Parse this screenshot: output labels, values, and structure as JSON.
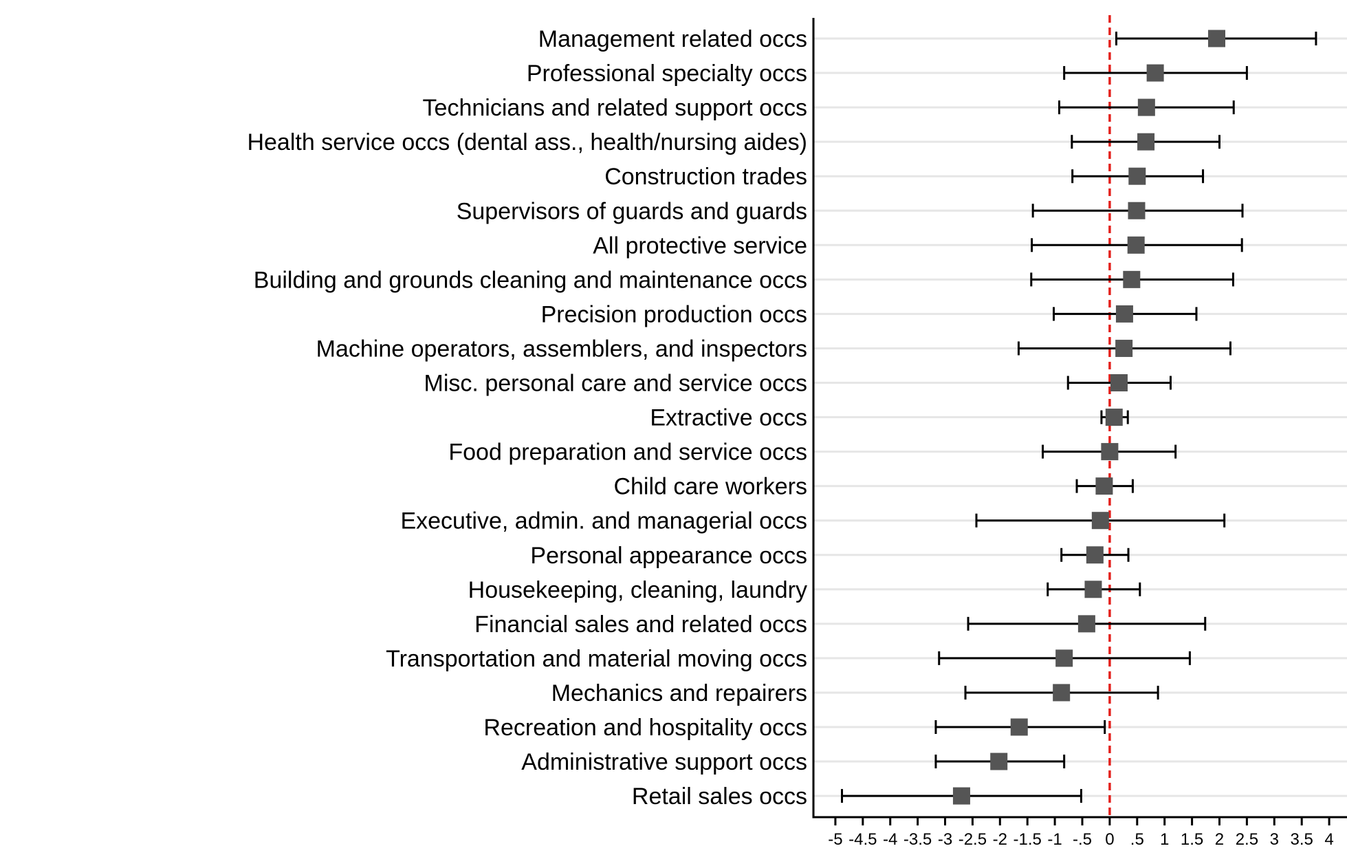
{
  "chart_data": {
    "type": "scatter",
    "subtype": "coefficient-plot-with-confidence-intervals",
    "orientation": "horizontal",
    "title": "",
    "xlabel": "",
    "ylabel": "",
    "xlim": [
      -5.4,
      4.4
    ],
    "xticks": [
      -5,
      -4.5,
      -4,
      -3.5,
      -3,
      -2.5,
      -2,
      -1.5,
      -1,
      -0.5,
      0,
      0.5,
      1,
      1.5,
      2,
      2.5,
      3,
      3.5,
      4
    ],
    "xtick_labels": [
      "-5",
      "-4.5",
      "-4",
      "-3.5",
      "-3",
      "-2.5",
      "-2",
      "-1.5",
      "-1",
      "-.5",
      "0",
      ".5",
      "1",
      "1.5",
      "2",
      "2.5",
      "3",
      "3.5",
      "4"
    ],
    "reference_line": {
      "x": 0,
      "color": "#e3201b",
      "style": "dashed"
    },
    "grid": "horizontal",
    "legend": "none",
    "colors": {
      "marker": "#555555",
      "ci": "#000000",
      "grid": "#e6e6e6",
      "axis": "#000000"
    },
    "categories": [
      "Management related occs",
      "Professional specialty occs",
      "Technicians and related support occs",
      "Health service occs (dental ass., health/nursing aides)",
      "Construction trades",
      "Supervisors of guards and guards",
      "All protective service",
      "Building and grounds cleaning and maintenance occs",
      "Precision production occs",
      "Machine operators, assemblers, and inspectors",
      "Misc. personal care and service occs",
      "Extractive occs",
      "Food preparation and service occs",
      "Child care workers",
      "Executive, admin. and managerial occs",
      "Personal appearance occs",
      "Housekeeping, cleaning, laundry",
      "Financial sales and related occs",
      "Transportation and material moving occs",
      "Mechanics and repairers",
      "Recreation and hospitality occs",
      "Administrative support occs",
      "Retail sales occs"
    ],
    "estimates": [
      1.95,
      0.83,
      0.67,
      0.66,
      0.5,
      0.49,
      0.48,
      0.4,
      0.27,
      0.26,
      0.17,
      0.08,
      0.0,
      -0.1,
      -0.17,
      -0.27,
      -0.3,
      -0.42,
      -0.83,
      -0.88,
      -1.65,
      -2.02,
      -2.7
    ],
    "ci_low": [
      0.12,
      -0.83,
      -0.92,
      -0.69,
      -0.68,
      -1.4,
      -1.42,
      -1.43,
      -1.02,
      -1.66,
      -0.76,
      -0.15,
      -1.22,
      -0.6,
      -2.43,
      -0.88,
      -1.13,
      -2.58,
      -3.11,
      -2.63,
      -3.17,
      -3.17,
      -4.88
    ],
    "ci_high": [
      3.76,
      2.5,
      2.26,
      2.0,
      1.7,
      2.42,
      2.41,
      2.25,
      1.58,
      2.2,
      1.11,
      0.33,
      1.2,
      0.42,
      2.09,
      0.34,
      0.55,
      1.74,
      1.46,
      0.88,
      -0.09,
      -0.83,
      -0.52
    ]
  }
}
